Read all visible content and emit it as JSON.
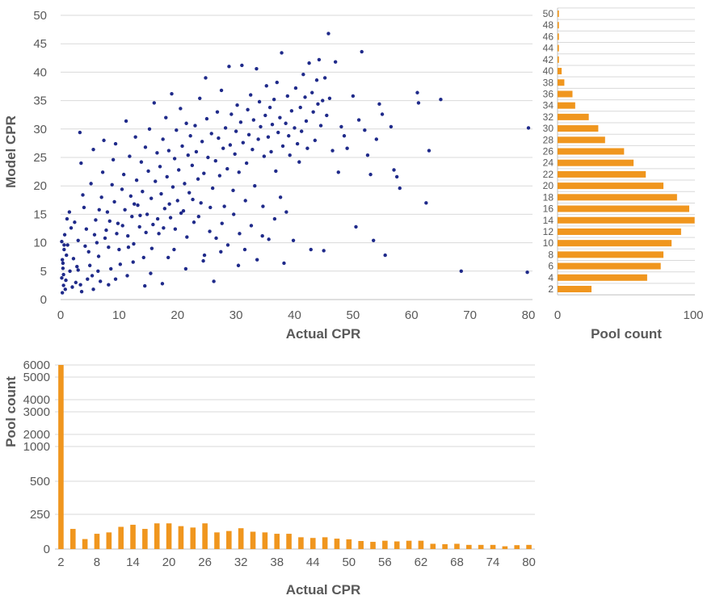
{
  "colors": {
    "scatter": "#1f2a8a",
    "bars": "#f0961e"
  },
  "chart_data": [
    {
      "type": "scatter",
      "xlabel": "Actual CPR",
      "ylabel": "Model CPR",
      "xlim": [
        0,
        80
      ],
      "ylim": [
        0,
        50
      ],
      "x_ticks": [
        "0",
        "10",
        "20",
        "30",
        "40",
        "50",
        "60",
        "70",
        "80"
      ],
      "y_ticks": [
        "0",
        "5",
        "10",
        "15",
        "20",
        "25",
        "30",
        "35",
        "40",
        "45",
        "50"
      ],
      "grid": true,
      "points": [
        [
          0.3,
          1.2
        ],
        [
          0.5,
          2.5
        ],
        [
          0.2,
          3.8
        ],
        [
          0.4,
          5.5
        ],
        [
          0.3,
          7.0
        ],
        [
          0.6,
          8.8
        ],
        [
          0.2,
          10.2
        ],
        [
          0.5,
          4.4
        ],
        [
          0.8,
          1.8
        ],
        [
          0.4,
          6.4
        ],
        [
          0.6,
          9.6
        ],
        [
          1.1,
          14.2
        ],
        [
          1.5,
          15.4
        ],
        [
          1.8,
          12.6
        ],
        [
          2.2,
          7.2
        ],
        [
          2.6,
          3.0
        ],
        [
          3.0,
          5.2
        ],
        [
          3.4,
          2.6
        ],
        [
          3.0,
          10.4
        ],
        [
          3.3,
          29.4
        ],
        [
          3.5,
          24.0
        ],
        [
          3.8,
          18.4
        ],
        [
          4.0,
          16.2
        ],
        [
          4.4,
          12.4
        ],
        [
          4.8,
          8.4
        ],
        [
          5.0,
          6.0
        ],
        [
          5.4,
          4.2
        ],
        [
          5.2,
          20.4
        ],
        [
          5.6,
          26.4
        ],
        [
          6.0,
          14.0
        ],
        [
          6.2,
          10.0
        ],
        [
          6.5,
          7.6
        ],
        [
          6.8,
          3.2
        ],
        [
          7.0,
          18.0
        ],
        [
          7.2,
          22.4
        ],
        [
          7.4,
          28.0
        ],
        [
          7.8,
          12.2
        ],
        [
          8.0,
          15.4
        ],
        [
          8.2,
          9.2
        ],
        [
          8.6,
          5.4
        ],
        [
          8.8,
          20.2
        ],
        [
          9.0,
          24.6
        ],
        [
          9.2,
          17.2
        ],
        [
          9.4,
          27.4
        ],
        [
          9.8,
          13.4
        ],
        [
          10.0,
          8.8
        ],
        [
          10.2,
          6.2
        ],
        [
          10.5,
          19.4
        ],
        [
          10.8,
          22.0
        ],
        [
          11.0,
          15.8
        ],
        [
          11.2,
          31.4
        ],
        [
          11.5,
          11.2
        ],
        [
          11.8,
          25.2
        ],
        [
          12.0,
          18.2
        ],
        [
          12.2,
          14.6
        ],
        [
          12.5,
          9.8
        ],
        [
          12.8,
          28.6
        ],
        [
          13.0,
          21.0
        ],
        [
          13.2,
          16.6
        ],
        [
          13.5,
          12.8
        ],
        [
          13.8,
          24.2
        ],
        [
          14.0,
          19.0
        ],
        [
          14.2,
          7.4
        ],
        [
          14.5,
          26.8
        ],
        [
          14.8,
          15.0
        ],
        [
          15.0,
          22.6
        ],
        [
          15.2,
          30.0
        ],
        [
          15.5,
          17.8
        ],
        [
          15.8,
          13.2
        ],
        [
          16.0,
          34.6
        ],
        [
          16.2,
          20.8
        ],
        [
          16.5,
          25.8
        ],
        [
          16.8,
          11.6
        ],
        [
          17.0,
          23.4
        ],
        [
          17.2,
          18.6
        ],
        [
          17.5,
          28.2
        ],
        [
          17.8,
          16.0
        ],
        [
          18.0,
          32.0
        ],
        [
          18.2,
          21.6
        ],
        [
          18.5,
          26.2
        ],
        [
          18.8,
          14.4
        ],
        [
          19.0,
          36.2
        ],
        [
          19.2,
          19.8
        ],
        [
          19.5,
          24.8
        ],
        [
          19.8,
          29.8
        ],
        [
          20.0,
          17.4
        ],
        [
          20.2,
          22.8
        ],
        [
          20.5,
          33.6
        ],
        [
          20.8,
          27.0
        ],
        [
          21.0,
          15.6
        ],
        [
          21.2,
          20.4
        ],
        [
          21.5,
          31.0
        ],
        [
          21.8,
          25.4
        ],
        [
          22.0,
          18.8
        ],
        [
          22.2,
          28.8
        ],
        [
          22.5,
          23.6
        ],
        [
          22.8,
          13.6
        ],
        [
          23.0,
          30.6
        ],
        [
          23.2,
          26.0
        ],
        [
          23.5,
          21.2
        ],
        [
          23.8,
          35.4
        ],
        [
          24.0,
          17.0
        ],
        [
          24.2,
          27.8
        ],
        [
          24.5,
          22.2
        ],
        [
          24.8,
          39.0
        ],
        [
          25.0,
          31.8
        ],
        [
          25.2,
          25.0
        ],
        [
          25.5,
          12.0
        ],
        [
          25.8,
          29.2
        ],
        [
          26.0,
          19.6
        ],
        [
          26.2,
          3.2
        ],
        [
          26.5,
          24.4
        ],
        [
          26.8,
          33.0
        ],
        [
          27.0,
          28.4
        ],
        [
          27.2,
          21.8
        ],
        [
          27.5,
          36.8
        ],
        [
          27.8,
          26.6
        ],
        [
          28.0,
          16.4
        ],
        [
          28.2,
          30.2
        ],
        [
          28.5,
          23.0
        ],
        [
          28.8,
          41.0
        ],
        [
          29.0,
          27.2
        ],
        [
          29.2,
          32.6
        ],
        [
          29.5,
          19.2
        ],
        [
          29.8,
          25.6
        ],
        [
          30.0,
          29.6
        ],
        [
          30.2,
          34.2
        ],
        [
          30.5,
          22.4
        ],
        [
          30.8,
          31.2
        ],
        [
          31.0,
          41.2
        ],
        [
          31.2,
          27.6
        ],
        [
          31.5,
          8.8
        ],
        [
          31.8,
          24.0
        ],
        [
          32.0,
          33.4
        ],
        [
          32.2,
          29.0
        ],
        [
          32.5,
          36.0
        ],
        [
          32.8,
          26.4
        ],
        [
          33.0,
          31.6
        ],
        [
          33.2,
          20.0
        ],
        [
          33.5,
          40.6
        ],
        [
          33.8,
          28.2
        ],
        [
          34.0,
          34.8
        ],
        [
          34.2,
          30.4
        ],
        [
          34.5,
          11.2
        ],
        [
          34.8,
          25.2
        ],
        [
          35.0,
          32.4
        ],
        [
          35.2,
          37.6
        ],
        [
          35.5,
          28.6
        ],
        [
          35.8,
          33.8
        ],
        [
          36.0,
          26.0
        ],
        [
          36.2,
          30.8
        ],
        [
          36.5,
          35.2
        ],
        [
          36.8,
          22.6
        ],
        [
          37.0,
          38.2
        ],
        [
          37.2,
          29.4
        ],
        [
          37.5,
          32.0
        ],
        [
          37.8,
          43.4
        ],
        [
          38.0,
          27.0
        ],
        [
          38.2,
          6.4
        ],
        [
          38.5,
          31.0
        ],
        [
          38.8,
          35.8
        ],
        [
          39.0,
          28.8
        ],
        [
          39.2,
          25.4
        ],
        [
          39.5,
          33.2
        ],
        [
          39.8,
          10.4
        ],
        [
          40.0,
          30.2
        ],
        [
          40.2,
          37.2
        ],
        [
          40.5,
          27.4
        ],
        [
          40.8,
          24.2
        ],
        [
          41.0,
          33.8
        ],
        [
          41.2,
          29.6
        ],
        [
          41.5,
          39.6
        ],
        [
          41.8,
          35.6
        ],
        [
          42.0,
          31.4
        ],
        [
          42.2,
          26.6
        ],
        [
          42.5,
          41.6
        ],
        [
          42.8,
          8.8
        ],
        [
          43.0,
          36.4
        ],
        [
          43.2,
          33.0
        ],
        [
          43.5,
          28.0
        ],
        [
          43.8,
          38.6
        ],
        [
          44.0,
          34.4
        ],
        [
          44.2,
          42.2
        ],
        [
          44.5,
          30.6
        ],
        [
          44.8,
          35.0
        ],
        [
          45.0,
          8.6
        ],
        [
          45.2,
          39.0
        ],
        [
          45.5,
          32.4
        ],
        [
          45.8,
          46.8
        ],
        [
          46.0,
          35.4
        ],
        [
          46.5,
          26.2
        ],
        [
          47.0,
          41.8
        ],
        [
          47.5,
          22.4
        ],
        [
          48.0,
          30.4
        ],
        [
          48.5,
          28.8
        ],
        [
          49.0,
          26.6
        ],
        [
          50.0,
          35.8
        ],
        [
          50.5,
          12.8
        ],
        [
          51.0,
          31.6
        ],
        [
          51.5,
          43.6
        ],
        [
          52.0,
          29.8
        ],
        [
          52.5,
          25.4
        ],
        [
          53.0,
          22.0
        ],
        [
          53.5,
          10.4
        ],
        [
          54.0,
          28.2
        ],
        [
          54.5,
          34.4
        ],
        [
          55.0,
          32.6
        ],
        [
          55.5,
          7.8
        ],
        [
          56.5,
          30.4
        ],
        [
          57.0,
          22.8
        ],
        [
          57.5,
          21.6
        ],
        [
          58.0,
          19.6
        ],
        [
          61.0,
          36.4
        ],
        [
          61.2,
          34.6
        ],
        [
          62.5,
          17.0
        ],
        [
          63.0,
          26.2
        ],
        [
          65.0,
          35.2
        ],
        [
          68.5,
          5.0
        ],
        [
          79.8,
          4.8
        ],
        [
          80.0,
          30.2
        ],
        [
          2.4,
          13.6
        ],
        [
          1.2,
          9.6
        ],
        [
          0.9,
          3.4
        ],
        [
          2.8,
          5.8
        ],
        [
          4.2,
          9.4
        ],
        [
          5.8,
          11.4
        ],
        [
          6.6,
          15.8
        ],
        [
          7.6,
          10.8
        ],
        [
          8.4,
          13.8
        ],
        [
          9.6,
          11.6
        ],
        [
          10.6,
          13.0
        ],
        [
          11.6,
          9.2
        ],
        [
          12.6,
          16.8
        ],
        [
          13.6,
          14.8
        ],
        [
          14.6,
          11.8
        ],
        [
          15.6,
          9.0
        ],
        [
          16.6,
          14.2
        ],
        [
          17.6,
          12.6
        ],
        [
          18.6,
          16.8
        ],
        [
          19.6,
          12.4
        ],
        [
          20.6,
          15.2
        ],
        [
          21.6,
          11.0
        ],
        [
          22.6,
          17.6
        ],
        [
          23.6,
          14.6
        ],
        [
          24.6,
          7.8
        ],
        [
          25.6,
          16.2
        ],
        [
          26.6,
          10.8
        ],
        [
          27.6,
          13.4
        ],
        [
          28.6,
          9.6
        ],
        [
          29.6,
          15.0
        ],
        [
          30.6,
          11.6
        ],
        [
          31.6,
          17.4
        ],
        [
          32.6,
          13.0
        ],
        [
          33.6,
          7.0
        ],
        [
          34.6,
          16.4
        ],
        [
          35.6,
          10.6
        ],
        [
          36.6,
          14.2
        ],
        [
          37.6,
          18.0
        ],
        [
          38.6,
          15.4
        ],
        [
          6.4,
          5.0
        ],
        [
          9.4,
          3.6
        ],
        [
          12.4,
          6.6
        ],
        [
          15.4,
          4.6
        ],
        [
          18.4,
          7.4
        ],
        [
          21.4,
          5.4
        ],
        [
          24.4,
          6.8
        ],
        [
          27.4,
          8.4
        ],
        [
          30.4,
          6.0
        ],
        [
          17.4,
          2.8
        ],
        [
          19.4,
          8.8
        ],
        [
          11.4,
          4.2
        ],
        [
          14.4,
          2.4
        ],
        [
          8.2,
          2.6
        ],
        [
          5.6,
          1.8
        ],
        [
          4.6,
          3.6
        ],
        [
          3.6,
          1.4
        ],
        [
          2.0,
          2.2
        ],
        [
          1.6,
          5.0
        ],
        [
          1.0,
          7.8
        ],
        [
          0.7,
          11.4
        ]
      ]
    },
    {
      "type": "bar",
      "orientation": "horizontal",
      "xlabel": "Pool count",
      "xlim": [
        0,
        100
      ],
      "x_ticks": [
        "0",
        "100"
      ],
      "categories": [
        "2",
        "4",
        "6",
        "8",
        "10",
        "12",
        "14",
        "16",
        "18",
        "20",
        "22",
        "24",
        "26",
        "28",
        "30",
        "32",
        "34",
        "36",
        "38",
        "40",
        "42",
        "44",
        "46",
        "48",
        "50"
      ],
      "values": [
        25,
        66,
        76,
        78,
        84,
        91,
        101,
        97,
        88,
        78,
        65,
        56,
        49,
        35,
        30,
        23,
        13,
        11,
        5,
        3,
        1,
        1,
        1,
        1,
        1
      ],
      "grid": true
    },
    {
      "type": "bar",
      "xlabel": "Actual CPR",
      "ylabel": "Pool count",
      "categories": [
        "2",
        "4",
        "6",
        "8",
        "10",
        "12",
        "14",
        "16",
        "18",
        "20",
        "22",
        "24",
        "26",
        "28",
        "30",
        "32",
        "34",
        "36",
        "38",
        "40",
        "42",
        "44",
        "46",
        "48",
        "50",
        "52",
        "54",
        "56",
        "58",
        "60",
        "62",
        "64",
        "66",
        "68",
        "70",
        "72",
        "74",
        "76",
        "78",
        "80"
      ],
      "x_ticks": [
        "2",
        "8",
        "14",
        "20",
        "26",
        "32",
        "38",
        "44",
        "50",
        "56",
        "62",
        "68",
        "74",
        "80"
      ],
      "values": [
        6000,
        145,
        72,
        110,
        120,
        160,
        175,
        145,
        185,
        185,
        165,
        155,
        185,
        120,
        130,
        150,
        125,
        120,
        110,
        110,
        85,
        80,
        85,
        75,
        70,
        58,
        52,
        60,
        55,
        60,
        60,
        38,
        35,
        38,
        30,
        30,
        30,
        20,
        28,
        30
      ],
      "y_ticks": [
        "0",
        "250",
        "500",
        "1000",
        "2000",
        "3000",
        "4000",
        "5000",
        "6000"
      ],
      "y_scale": "piecewise-linear",
      "grid": true
    }
  ]
}
